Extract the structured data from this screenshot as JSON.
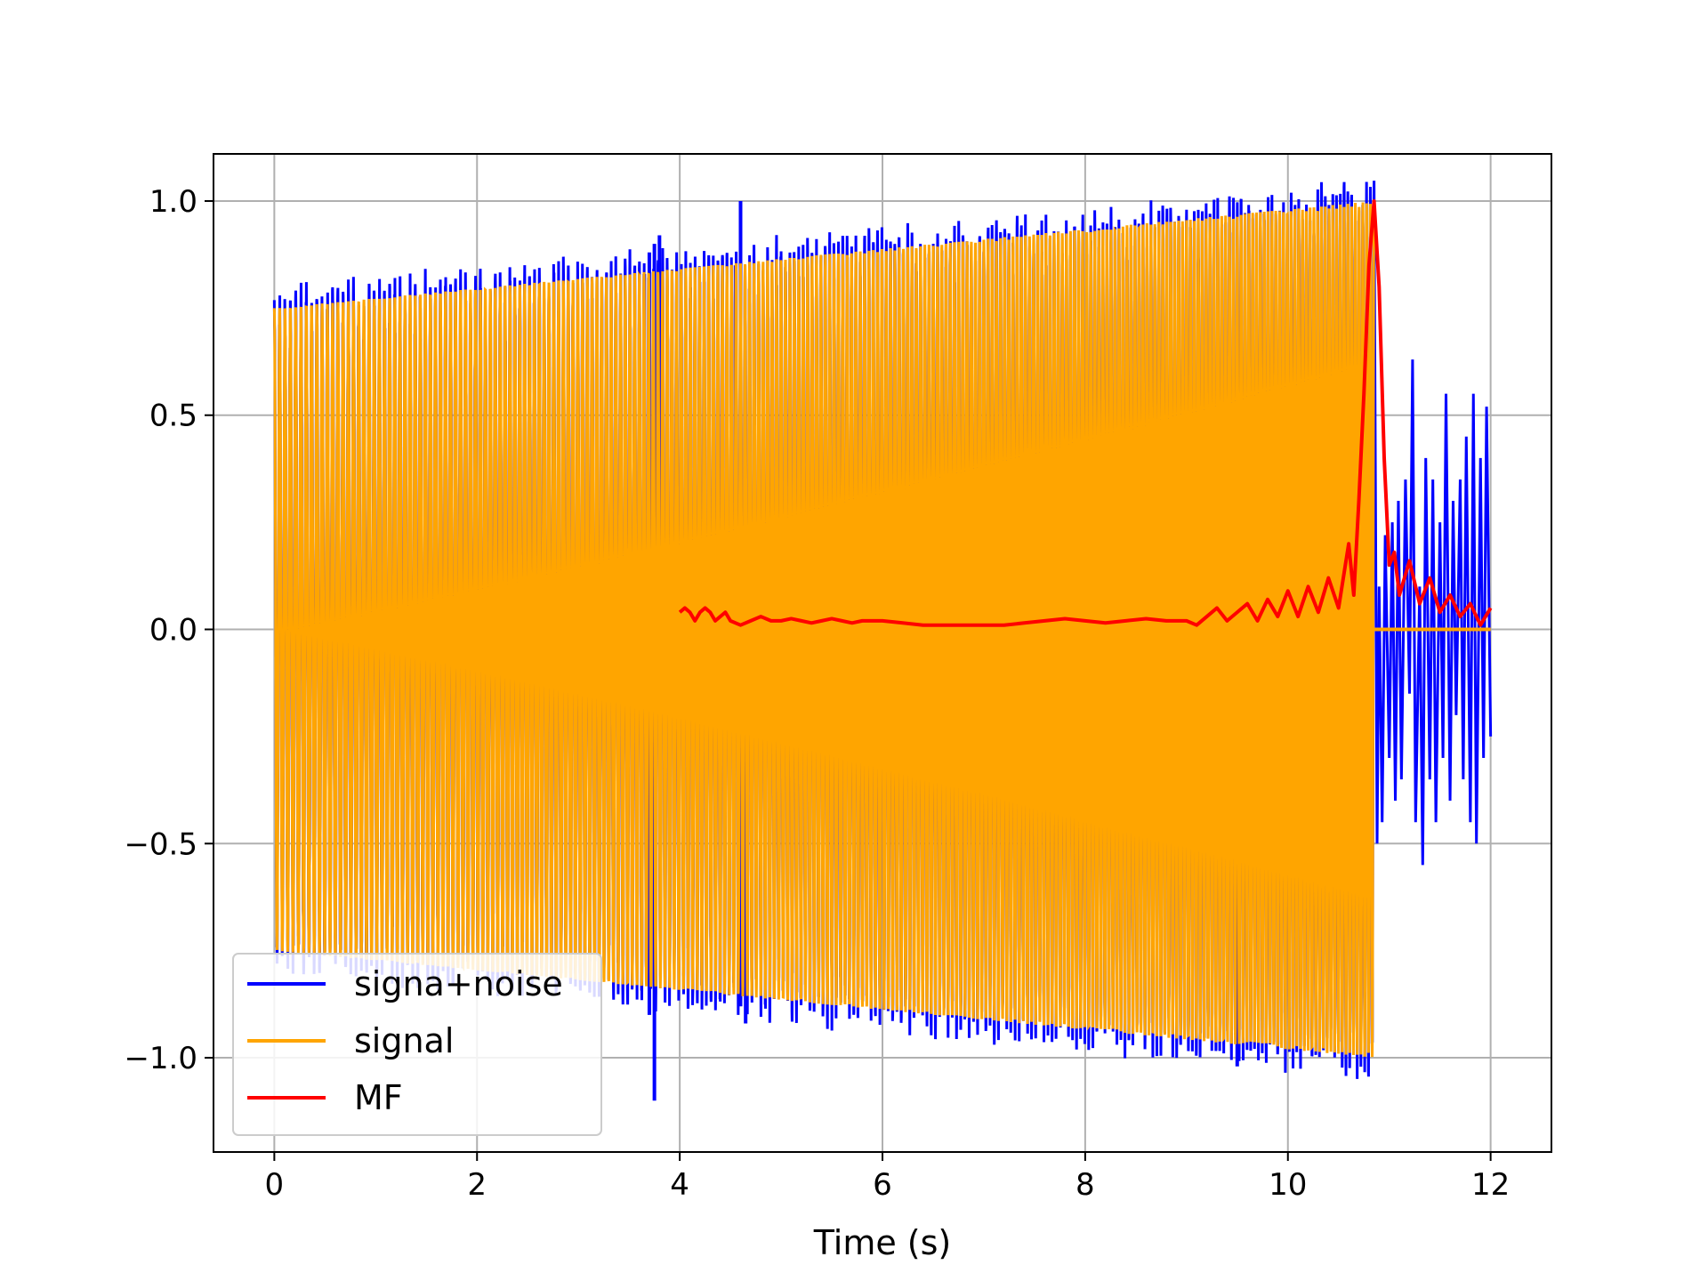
{
  "chart_data": {
    "type": "line",
    "title": "",
    "xlabel": "Time (s)",
    "ylabel": "",
    "xlim": [
      -0.6,
      12.6
    ],
    "ylim": [
      -1.22,
      1.11
    ],
    "x_ticks": [
      0,
      2,
      4,
      6,
      8,
      10,
      12
    ],
    "x_tick_labels": [
      "0",
      "2",
      "4",
      "6",
      "8",
      "10",
      "12"
    ],
    "y_ticks": [
      -1.0,
      -0.5,
      0.0,
      0.5,
      1.0
    ],
    "y_tick_labels": [
      "−1.0",
      "−0.5",
      "0.0",
      "0.5",
      "1.0"
    ],
    "grid": true,
    "legend_position": "lower-left",
    "series": [
      {
        "name": "signa+noise",
        "color": "#0000ff",
        "description": "signal plus noise; oscillation envelope rising from about 0.75 at t=0 to 1.0 at t=10.85, then noise up to t=12",
        "outlier_points": [
          [
            3.65,
            0.83
          ],
          [
            3.7,
            0.88
          ],
          [
            3.75,
            0.9
          ],
          [
            3.8,
            0.92
          ],
          [
            3.75,
            -1.1
          ],
          [
            3.7,
            -0.9
          ],
          [
            4.55,
            0.85
          ],
          [
            4.6,
            1.0
          ],
          [
            4.6,
            -0.88
          ],
          [
            4.65,
            -0.92
          ],
          [
            9.5,
            -1.02
          ]
        ],
        "post_signal_noise": [
          [
            10.88,
            -0.5
          ],
          [
            10.9,
            0.1
          ],
          [
            10.93,
            -0.45
          ],
          [
            10.96,
            0.22
          ],
          [
            11.0,
            -0.3
          ],
          [
            11.03,
            0.25
          ],
          [
            11.06,
            -0.4
          ],
          [
            11.09,
            0.3
          ],
          [
            11.12,
            -0.35
          ],
          [
            11.16,
            0.35
          ],
          [
            11.2,
            -0.15
          ],
          [
            11.23,
            0.63
          ],
          [
            11.26,
            -0.45
          ],
          [
            11.3,
            0.1
          ],
          [
            11.33,
            -0.55
          ],
          [
            11.36,
            0.4
          ],
          [
            11.4,
            -0.35
          ],
          [
            11.43,
            0.35
          ],
          [
            11.46,
            -0.45
          ],
          [
            11.5,
            0.25
          ],
          [
            11.53,
            -0.3
          ],
          [
            11.56,
            0.55
          ],
          [
            11.6,
            -0.4
          ],
          [
            11.63,
            0.3
          ],
          [
            11.66,
            -0.2
          ],
          [
            11.7,
            0.35
          ],
          [
            11.73,
            -0.35
          ],
          [
            11.76,
            0.45
          ],
          [
            11.8,
            -0.45
          ],
          [
            11.83,
            0.55
          ],
          [
            11.86,
            -0.5
          ],
          [
            11.9,
            0.4
          ],
          [
            11.93,
            -0.3
          ],
          [
            11.96,
            0.52
          ],
          [
            12.0,
            -0.25
          ]
        ]
      },
      {
        "name": "signal",
        "color": "#ffa500",
        "description": "chirp from t=0 to t=10.85 with amplitude growing from 0.75 to 1.0; zero from 10.85 to 12",
        "t_start": 0,
        "t_end": 10.85,
        "amplitude_start": 0.75,
        "amplitude_end": 1.0,
        "zero_after_end": 12.0
      },
      {
        "name": "MF",
        "color": "#ff0000",
        "x": [
          4.0,
          4.05,
          4.1,
          4.15,
          4.2,
          4.25,
          4.3,
          4.35,
          4.4,
          4.45,
          4.5,
          4.6,
          4.7,
          4.8,
          4.9,
          5.0,
          5.1,
          5.2,
          5.3,
          5.4,
          5.5,
          5.6,
          5.7,
          5.8,
          5.9,
          6.0,
          6.2,
          6.4,
          6.6,
          6.8,
          7.0,
          7.2,
          7.4,
          7.6,
          7.8,
          8.0,
          8.2,
          8.4,
          8.6,
          8.8,
          9.0,
          9.1,
          9.2,
          9.3,
          9.4,
          9.5,
          9.6,
          9.7,
          9.8,
          9.9,
          10.0,
          10.1,
          10.2,
          10.3,
          10.4,
          10.5,
          10.6,
          10.65,
          10.7,
          10.75,
          10.8,
          10.85,
          10.9,
          10.95,
          11.0,
          11.05,
          11.1,
          11.15,
          11.2,
          11.3,
          11.4,
          11.5,
          11.6,
          11.7,
          11.8,
          11.9,
          12.0
        ],
        "values": [
          0.04,
          0.05,
          0.04,
          0.02,
          0.04,
          0.05,
          0.04,
          0.02,
          0.03,
          0.04,
          0.02,
          0.01,
          0.02,
          0.03,
          0.02,
          0.02,
          0.025,
          0.02,
          0.015,
          0.02,
          0.025,
          0.02,
          0.015,
          0.02,
          0.02,
          0.02,
          0.015,
          0.01,
          0.01,
          0.01,
          0.01,
          0.01,
          0.015,
          0.02,
          0.025,
          0.02,
          0.015,
          0.02,
          0.025,
          0.02,
          0.02,
          0.01,
          0.03,
          0.05,
          0.02,
          0.04,
          0.06,
          0.02,
          0.07,
          0.03,
          0.09,
          0.03,
          0.1,
          0.04,
          0.12,
          0.05,
          0.2,
          0.08,
          0.3,
          0.55,
          0.85,
          1.0,
          0.8,
          0.4,
          0.15,
          0.18,
          0.08,
          0.12,
          0.16,
          0.06,
          0.12,
          0.04,
          0.08,
          0.03,
          0.06,
          0.01,
          0.05
        ]
      }
    ]
  }
}
